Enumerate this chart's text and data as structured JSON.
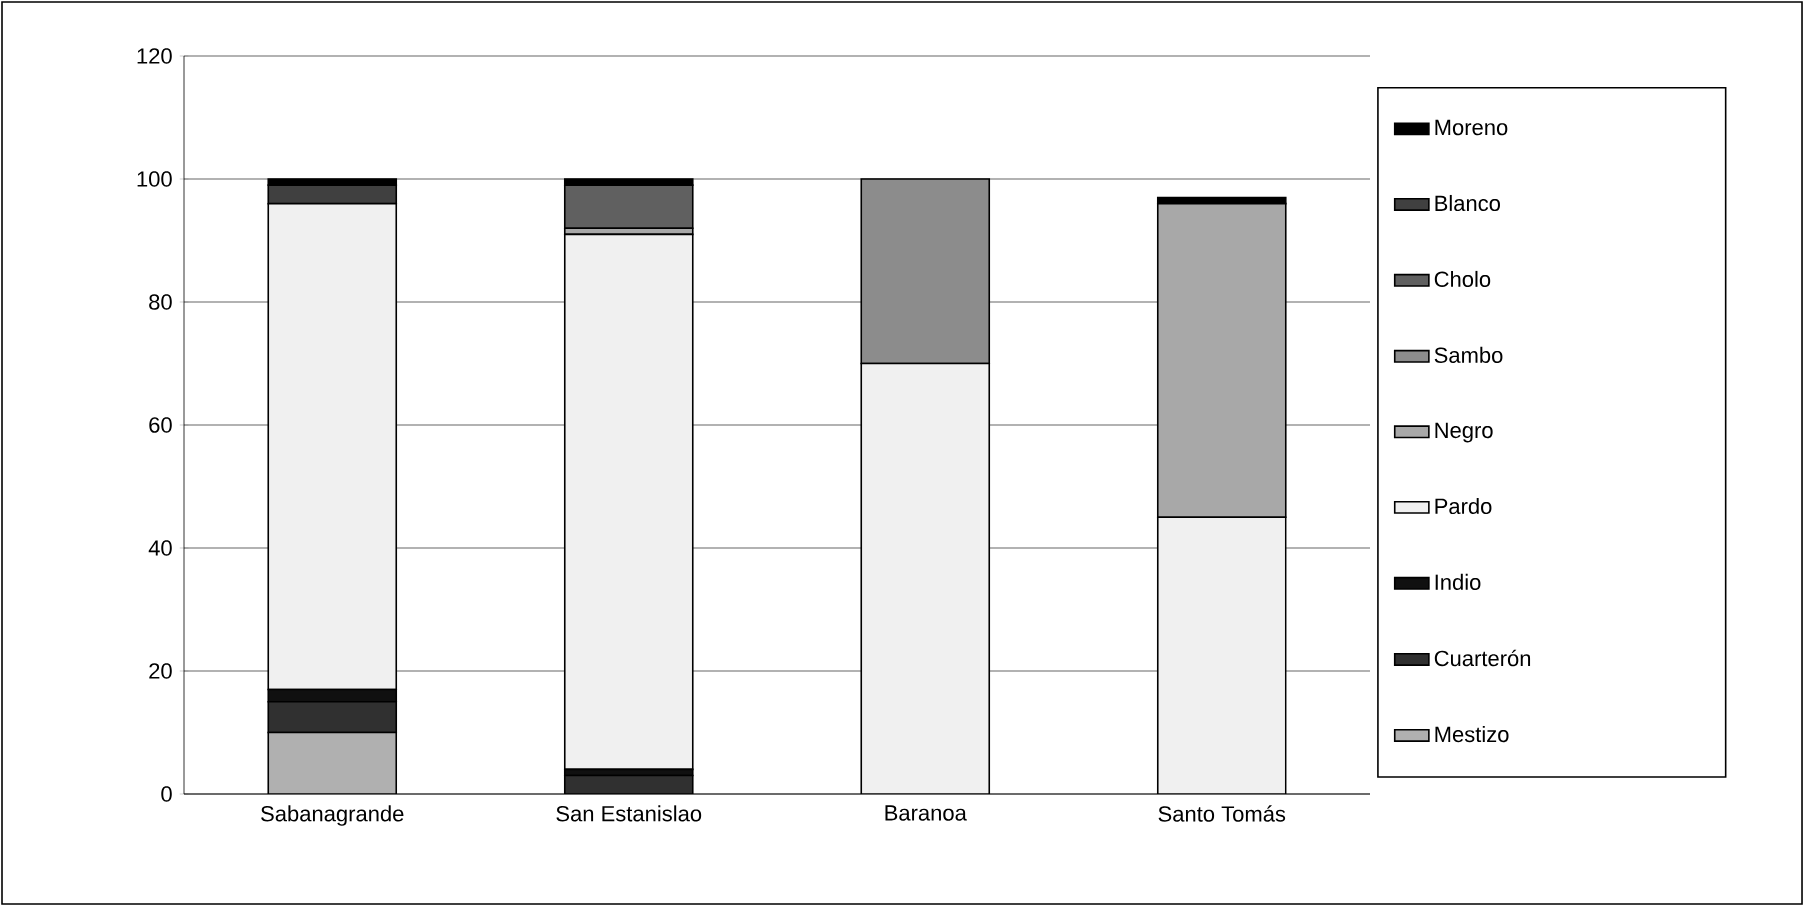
{
  "chart_data": {
    "type": "bar",
    "stacked": true,
    "categories": [
      "Sabanagrande",
      "San Estanislao",
      "Baranoa",
      "Santo Tomás"
    ],
    "ylim": [
      0,
      120
    ],
    "yticks": [
      0,
      20,
      40,
      60,
      80,
      100,
      120
    ],
    "grid": "y",
    "legend": "right",
    "series": [
      {
        "name": "Mestizo",
        "color": "#b0b0b0",
        "values": [
          10,
          0,
          0,
          0
        ]
      },
      {
        "name": "Cuarterón",
        "color": "#303030",
        "values": [
          5,
          3,
          0,
          0
        ]
      },
      {
        "name": "Indio",
        "color": "#101010",
        "values": [
          2,
          1,
          0,
          0
        ]
      },
      {
        "name": "Pardo",
        "color": "#f0f0f0",
        "values": [
          79,
          87,
          70,
          45
        ]
      },
      {
        "name": "Negro",
        "color": "#a8a8a8",
        "values": [
          0,
          1,
          0,
          51
        ]
      },
      {
        "name": "Sambo",
        "color": "#8c8c8c",
        "values": [
          0,
          0,
          30,
          0
        ]
      },
      {
        "name": "Cholo",
        "color": "#606060",
        "values": [
          0,
          7,
          0,
          0
        ]
      },
      {
        "name": "Blanco",
        "color": "#404040",
        "values": [
          3,
          0,
          0,
          0
        ]
      },
      {
        "name": "Moreno",
        "color": "#000000",
        "values": [
          1,
          1,
          0,
          1
        ]
      }
    ]
  }
}
